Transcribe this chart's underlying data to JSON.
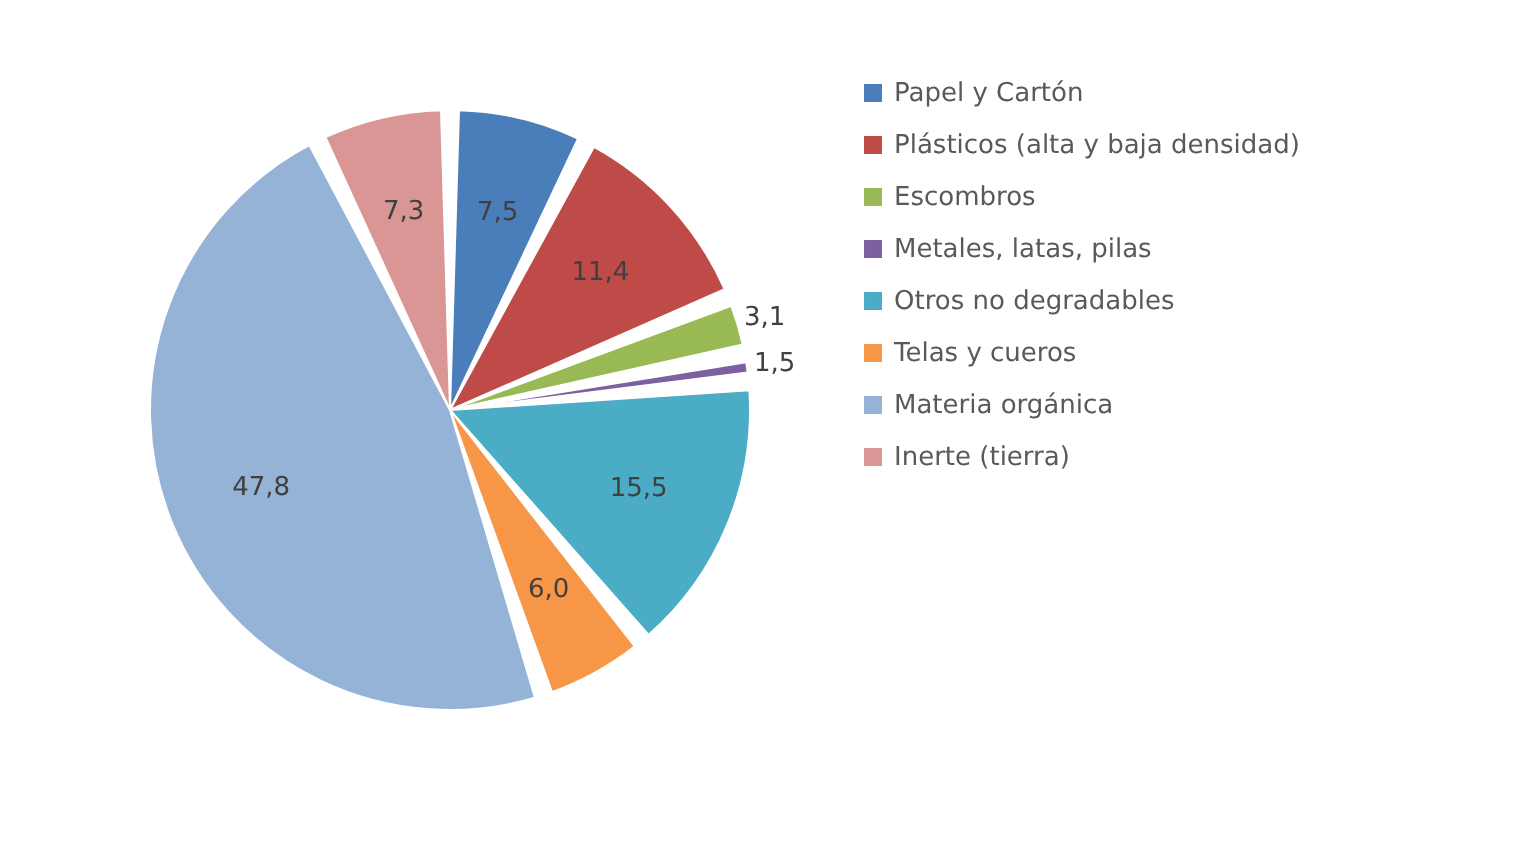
{
  "chart_data": {
    "type": "pie",
    "categories": [
      "Papel y Cartón",
      "Plásticos (alta y baja densidad)",
      "Escombros",
      "Metales, latas,  pilas",
      "Otros no degradables",
      "Telas y cueros",
      "Materia orgánica",
      "Inerte (tierra)"
    ],
    "values": [
      7.5,
      11.4,
      3.1,
      1.5,
      15.5,
      6.0,
      47.8,
      7.3
    ],
    "value_labels": [
      "7,5",
      "11,4",
      "3,1",
      "1,5",
      "15,5",
      "6,0",
      "47,8",
      "7,3"
    ],
    "colors": [
      "#4a7ebb",
      "#be4b48",
      "#98b954",
      "#7d60a0",
      "#4bacc6",
      "#f79646",
      "#95b3d7",
      "#d99694"
    ],
    "legend": "right"
  }
}
